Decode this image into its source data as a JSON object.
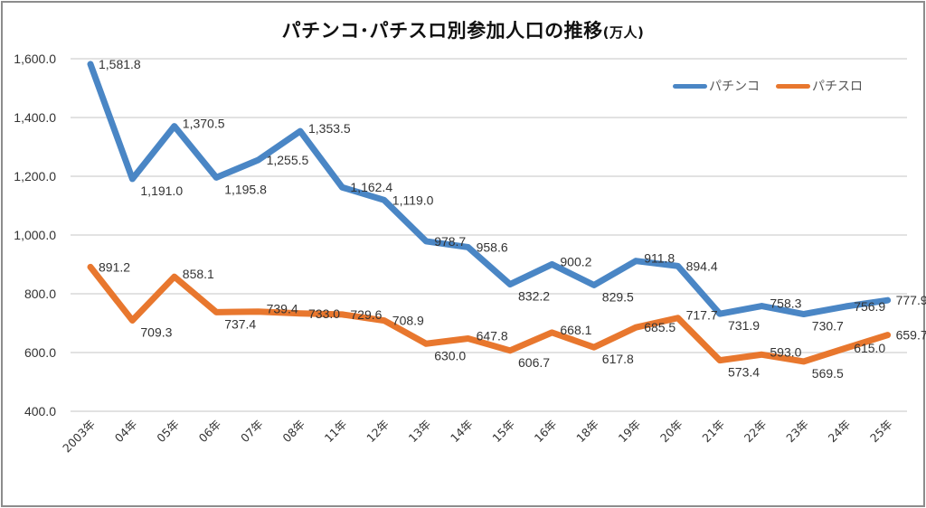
{
  "chart_data": {
    "type": "line",
    "title": "パチンコ･パチスロ別参加人口の推移",
    "title_unit": "(万人)",
    "xlabel": "",
    "ylabel": "",
    "categories": [
      "2003年",
      "04年",
      "05年",
      "06年",
      "07年",
      "08年",
      "11年",
      "12年",
      "13年",
      "14年",
      "15年",
      "16年",
      "18年",
      "19年",
      "20年",
      "21年",
      "22年",
      "23年",
      "24年",
      "25年"
    ],
    "ylim": [
      400,
      1600
    ],
    "yticks": [
      400,
      600,
      800,
      1000,
      1200,
      1400,
      1600
    ],
    "ytick_labels": [
      "400.0",
      "600.0",
      "800.0",
      "1,000.0",
      "1,200.0",
      "1,400.0",
      "1,600.0"
    ],
    "grid": true,
    "legend_position": "top-right",
    "series": [
      {
        "name": "パチンコ",
        "color": "#4a86c5",
        "values": [
          1581.8,
          1191.0,
          1370.5,
          1195.8,
          1255.5,
          1353.5,
          1162.4,
          1119.0,
          978.7,
          958.6,
          832.2,
          900.2,
          829.5,
          911.8,
          894.4,
          731.9,
          758.3,
          730.7,
          756.9,
          777.9
        ],
        "labels": [
          "1,581.8",
          "1,191.0",
          "1,370.5",
          "1,195.8",
          "1,255.5",
          "1,353.5",
          "1,162.4",
          "1,119.0",
          "978.7",
          "958.6",
          "832.2",
          "900.2",
          "829.5",
          "911.8",
          "894.4",
          "731.9",
          "758.3",
          "730.7",
          "756.9",
          "777.9"
        ]
      },
      {
        "name": "パチスロ",
        "color": "#e8772e",
        "values": [
          891.2,
          709.3,
          858.1,
          737.4,
          739.4,
          733.0,
          729.6,
          708.9,
          630.0,
          647.8,
          606.7,
          668.1,
          617.8,
          685.5,
          717.7,
          573.4,
          593.0,
          569.5,
          615.0,
          659.7
        ],
        "labels": [
          "891.2",
          "709.3",
          "858.1",
          "737.4",
          "739.4",
          "733.0",
          "729.6",
          "708.9",
          "630.0",
          "647.8",
          "606.7",
          "668.1",
          "617.8",
          "685.5",
          "717.7",
          "573.4",
          "593.0",
          "569.5",
          "615.0",
          "659.7"
        ]
      }
    ]
  }
}
